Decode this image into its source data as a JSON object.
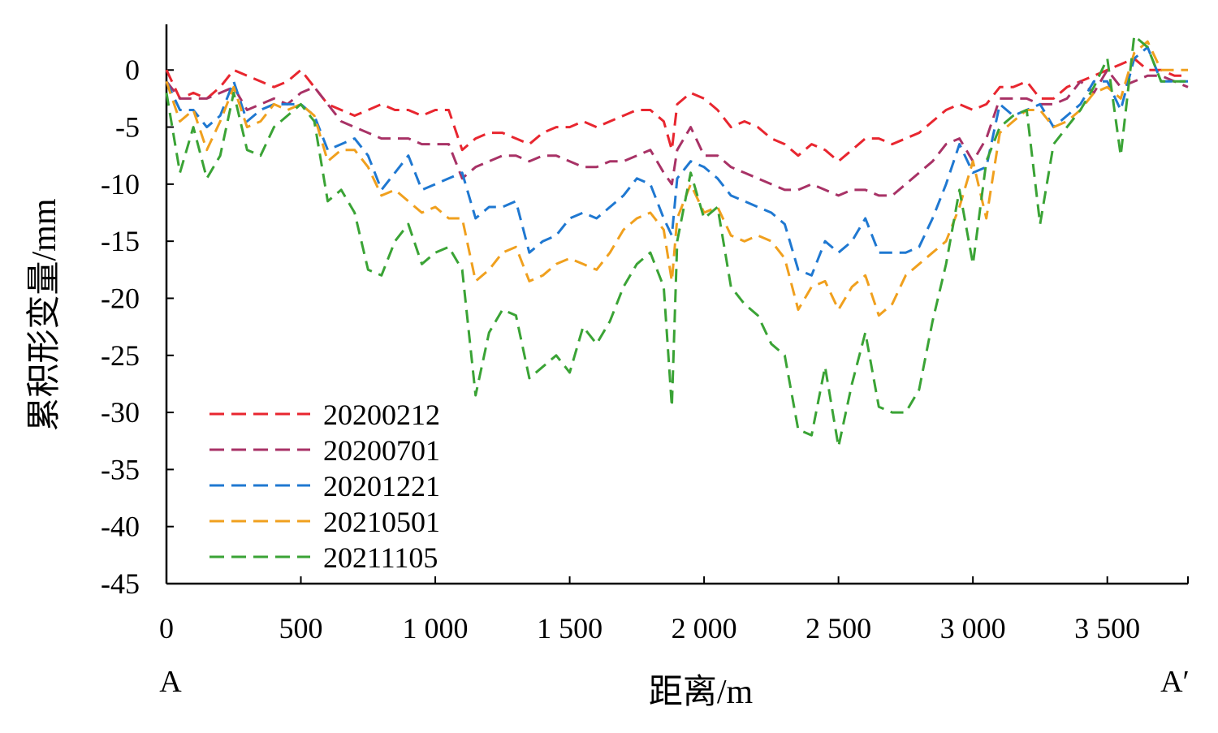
{
  "chart_data": {
    "type": "line",
    "title": "",
    "xlabel": "距离/m",
    "ylabel": "累积形变量/mm",
    "xlim": [
      0,
      3800
    ],
    "ylim": [
      -45,
      4
    ],
    "x_ticks": [
      {
        "value": 0,
        "label": "0"
      },
      {
        "value": 500,
        "label": "500"
      },
      {
        "value": 1000,
        "label": "1 000"
      },
      {
        "value": 1500,
        "label": "1 500"
      },
      {
        "value": 2000,
        "label": "2 000"
      },
      {
        "value": 2500,
        "label": "2 500"
      },
      {
        "value": 3000,
        "label": "3 000"
      },
      {
        "value": 3500,
        "label": "3 500"
      }
    ],
    "y_ticks": [
      {
        "value": 0,
        "label": "0"
      },
      {
        "value": -5,
        "label": "-5"
      },
      {
        "value": -10,
        "label": "-10"
      },
      {
        "value": -15,
        "label": "-15"
      },
      {
        "value": -20,
        "label": "-20"
      },
      {
        "value": -25,
        "label": "-25"
      },
      {
        "value": -30,
        "label": "-30"
      },
      {
        "value": -35,
        "label": "-35"
      },
      {
        "value": -40,
        "label": "-40"
      },
      {
        "value": -45,
        "label": "-45"
      }
    ],
    "start_label": "A",
    "end_label": "A′",
    "grid": false,
    "legend_position": "bottom-left",
    "line_style": "dashed",
    "x": [
      0,
      50,
      100,
      150,
      200,
      250,
      300,
      350,
      400,
      450,
      500,
      550,
      600,
      650,
      700,
      750,
      800,
      850,
      900,
      950,
      1000,
      1050,
      1100,
      1150,
      1200,
      1250,
      1300,
      1350,
      1400,
      1450,
      1500,
      1550,
      1600,
      1650,
      1700,
      1750,
      1800,
      1850,
      1880,
      1900,
      1950,
      2000,
      2050,
      2100,
      2150,
      2200,
      2250,
      2300,
      2350,
      2400,
      2450,
      2500,
      2550,
      2600,
      2650,
      2700,
      2750,
      2800,
      2850,
      2900,
      2950,
      3000,
      3050,
      3100,
      3150,
      3200,
      3250,
      3300,
      3350,
      3400,
      3450,
      3500,
      3550,
      3600,
      3650,
      3700,
      3750,
      3800
    ],
    "series": [
      {
        "name": "20200212",
        "color": "#e8262f",
        "values": [
          0,
          -2.5,
          -2,
          -2.5,
          -1.5,
          0,
          -0.5,
          -1,
          -1.5,
          -1,
          0,
          -1.5,
          -3,
          -3.5,
          -4,
          -3.5,
          -3,
          -3.5,
          -3.5,
          -4,
          -3.5,
          -3.5,
          -7,
          -6,
          -5.5,
          -5.5,
          -6,
          -6.5,
          -5.5,
          -5,
          -5,
          -4.5,
          -5,
          -4.5,
          -4,
          -3.5,
          -3.5,
          -4.5,
          -7,
          -3,
          -2,
          -2.5,
          -3.5,
          -5,
          -4.5,
          -5,
          -6,
          -6.5,
          -7.5,
          -6.5,
          -7,
          -8,
          -7,
          -6,
          -6,
          -6.5,
          -6,
          -5.5,
          -4.5,
          -3.5,
          -3,
          -3.5,
          -3,
          -1.5,
          -1.5,
          -1,
          -2.5,
          -2.5,
          -1.5,
          -1,
          -0.5,
          0,
          0.5,
          1,
          0,
          0,
          -0.5,
          -0.5
        ]
      },
      {
        "name": "20200701",
        "color": "#a83266",
        "values": [
          -1,
          -2.5,
          -2.5,
          -2.5,
          -2,
          -1.5,
          -3.5,
          -3,
          -2.5,
          -3,
          -2,
          -1.5,
          -3,
          -4.5,
          -5,
          -5.5,
          -6,
          -6,
          -6,
          -6.5,
          -6.5,
          -6.5,
          -9.5,
          -8.5,
          -8,
          -7.5,
          -7.5,
          -8,
          -7.5,
          -7.5,
          -8,
          -8.5,
          -8.5,
          -8,
          -8,
          -7.5,
          -7,
          -9,
          -10,
          -7,
          -5,
          -7.5,
          -7.5,
          -8.5,
          -9,
          -9.5,
          -10,
          -10.5,
          -10.5,
          -10,
          -10.5,
          -11,
          -10.5,
          -10.5,
          -11,
          -11,
          -10,
          -9,
          -8,
          -6.5,
          -6,
          -8,
          -6,
          -2.5,
          -2.5,
          -2.5,
          -3,
          -3,
          -2.5,
          -1,
          -2,
          0,
          -1.5,
          -1,
          -0.5,
          -0.5,
          -1,
          -1.5
        ]
      },
      {
        "name": "20201221",
        "color": "#1f78d1",
        "values": [
          -1,
          -3.5,
          -3.5,
          -5,
          -4,
          -1,
          -4.5,
          -3.5,
          -3,
          -3,
          -3,
          -4,
          -7,
          -6.5,
          -6,
          -7.5,
          -10.5,
          -9,
          -7.5,
          -10.5,
          -10,
          -9.5,
          -9,
          -13,
          -12,
          -12,
          -11.5,
          -16,
          -15,
          -14.5,
          -13,
          -12.5,
          -13,
          -12,
          -11,
          -9.5,
          -10,
          -13,
          -14.5,
          -9.5,
          -8,
          -8.5,
          -9.5,
          -11,
          -11.5,
          -12,
          -12.5,
          -13.5,
          -17.5,
          -18,
          -15,
          -16,
          -15,
          -13,
          -16,
          -16,
          -16,
          -15.5,
          -13,
          -10,
          -6.5,
          -9,
          -8.5,
          -3,
          -4,
          -3.5,
          -3,
          -5,
          -4,
          -3,
          -1,
          -1,
          -3.5,
          1,
          2,
          -1,
          -1,
          -1
        ]
      },
      {
        "name": "20210501",
        "color": "#f0a01e",
        "values": [
          -1,
          -4.5,
          -3.5,
          -7,
          -4.5,
          -1.5,
          -5,
          -4.5,
          -3,
          -3.5,
          -3,
          -4,
          -8,
          -7,
          -7,
          -8.5,
          -11,
          -10.5,
          -11.5,
          -12.5,
          -12,
          -13,
          -13,
          -18.5,
          -17.5,
          -16,
          -15.5,
          -18.5,
          -18,
          -17,
          -16.5,
          -17,
          -17.5,
          -16,
          -14,
          -13,
          -12.5,
          -14,
          -18.5,
          -13,
          -10,
          -12.5,
          -12,
          -14.5,
          -15,
          -14.5,
          -15,
          -16.5,
          -21,
          -19,
          -18.5,
          -21,
          -19,
          -18,
          -21.5,
          -20.5,
          -18,
          -17,
          -16,
          -15,
          -12,
          -8,
          -13,
          -5.5,
          -4.5,
          -3.5,
          -3.5,
          -5,
          -4.5,
          -3.5,
          -2,
          -1.5,
          -2.5,
          1.5,
          2.5,
          0,
          0,
          0
        ]
      },
      {
        "name": "20211105",
        "color": "#3aa335",
        "values": [
          -2,
          -9,
          -5,
          -9.5,
          -7.5,
          -2,
          -7,
          -7.5,
          -5,
          -4,
          -3,
          -4.5,
          -11.5,
          -10.5,
          -12.5,
          -17.5,
          -18,
          -15,
          -13.5,
          -17,
          -16,
          -15.5,
          -17.5,
          -28.5,
          -23,
          -21,
          -21.5,
          -27,
          -26,
          -25,
          -26.5,
          -22.5,
          -24,
          -22,
          -19,
          -17,
          -16,
          -19,
          -29.5,
          -15,
          -9,
          -13,
          -12,
          -19,
          -20.5,
          -21.5,
          -24,
          -25,
          -31.5,
          -32,
          -26,
          -33,
          -27.5,
          -23,
          -29.5,
          -30,
          -30,
          -28,
          -22,
          -17,
          -10.5,
          -17,
          -8,
          -5,
          -4,
          -3.5,
          -13.5,
          -6.5,
          -5,
          -3.5,
          -1.5,
          1,
          -7.5,
          3,
          2,
          -1,
          -1,
          -1
        ]
      }
    ]
  }
}
